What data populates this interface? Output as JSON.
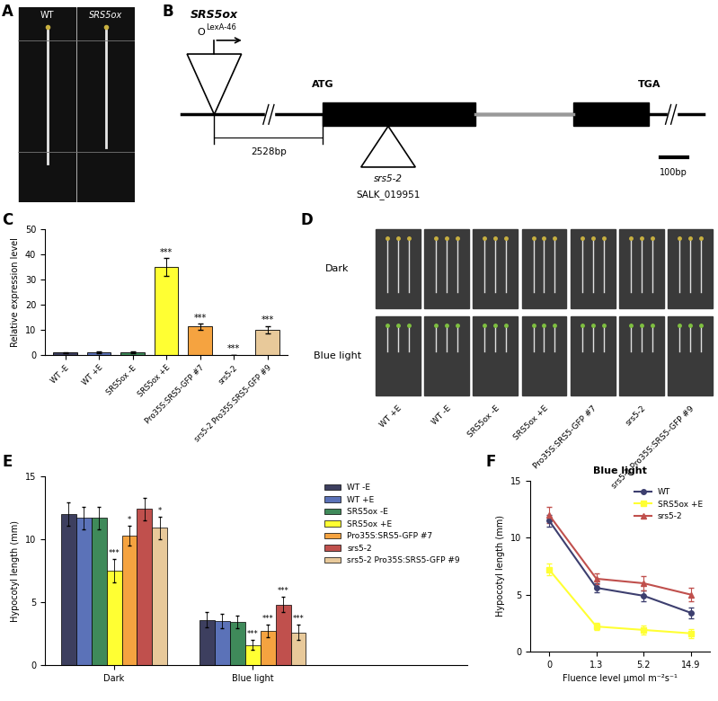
{
  "chart_data": [
    {
      "type": "bar",
      "panel": "C",
      "categories": [
        "WT -E",
        "WT +E",
        "SRS5ox -E",
        "SRS5ox +E",
        "Pro35S:SRS5-GFP #7",
        "srs5-2",
        "srs5-2 Pro35S:SRS5-GFP #9"
      ],
      "values": [
        1.0,
        1.1,
        1.1,
        35.0,
        11.3,
        0.1,
        10.0
      ],
      "errors": [
        0.2,
        0.3,
        0.3,
        3.5,
        1.2,
        0.05,
        1.5
      ],
      "significance": [
        null,
        null,
        null,
        "***",
        "***",
        "***",
        "***"
      ],
      "colors": [
        "#3d3f5f",
        "#5b72b8",
        "#3f8a5a",
        "#ffff33",
        "#f5a340",
        "#c0504d",
        "#e8c99a"
      ],
      "y_label": "Relative expression level",
      "ylim": [
        0,
        50
      ],
      "yticks": [
        0,
        10,
        20,
        30,
        40,
        50
      ]
    },
    {
      "type": "bar",
      "panel": "E",
      "categories": [
        "Dark",
        "Blue light"
      ],
      "y_label": "Hypocotyl length (mm)",
      "ylim": [
        0,
        15
      ],
      "yticks": [
        0,
        5,
        10,
        15
      ],
      "legend": "upper right",
      "series": [
        {
          "name": "WT -E",
          "color": "#3d3f5f",
          "values": [
            12.0,
            3.6
          ],
          "errors": [
            0.9,
            0.6
          ],
          "significance": [
            null,
            null
          ]
        },
        {
          "name": "WT +E",
          "color": "#5b72b8",
          "values": [
            11.7,
            3.5
          ],
          "errors": [
            0.9,
            0.6
          ],
          "significance": [
            null,
            null
          ]
        },
        {
          "name": "SRS5ox -E",
          "color": "#3f8a5a",
          "values": [
            11.7,
            3.4
          ],
          "errors": [
            0.9,
            0.5
          ],
          "significance": [
            null,
            null
          ]
        },
        {
          "name": "SRS5ox +E",
          "color": "#ffff33",
          "values": [
            7.5,
            1.6
          ],
          "errors": [
            0.9,
            0.4
          ],
          "significance": [
            "***",
            "***"
          ]
        },
        {
          "name": "Pro35S:SRS5-GFP #7",
          "color": "#f5a340",
          "values": [
            10.3,
            2.7
          ],
          "errors": [
            0.8,
            0.5
          ],
          "significance": [
            "*",
            "***"
          ]
        },
        {
          "name": "srs5-2",
          "color": "#c0504d",
          "values": [
            12.4,
            4.8
          ],
          "errors": [
            0.9,
            0.6
          ],
          "significance": [
            null,
            "***"
          ]
        },
        {
          "name": "srs5-2 Pro35S:SRS5-GFP #9",
          "color": "#e8c99a",
          "values": [
            10.9,
            2.6
          ],
          "errors": [
            0.9,
            0.6
          ],
          "significance": [
            "*",
            "***"
          ]
        }
      ]
    },
    {
      "type": "line",
      "panel": "F",
      "title": "Blue light",
      "categories": [
        "0",
        "1.3",
        "5.2",
        "14.9"
      ],
      "x_label": "Fluence level μmol m⁻²s⁻¹",
      "y_label": "Hypocotyl length (mm)",
      "ylim": [
        0,
        15
      ],
      "yticks": [
        0,
        5,
        10,
        15
      ],
      "legend": "upper right",
      "series": [
        {
          "name": "WT",
          "color": "#3d3f6f",
          "marker": "circle",
          "values": [
            11.5,
            5.6,
            4.9,
            3.4
          ],
          "errors": [
            0.5,
            0.4,
            0.5,
            0.5
          ]
        },
        {
          "name": "SRS5ox +E",
          "color": "#ffff33",
          "marker": "square",
          "values": [
            7.2,
            2.2,
            1.9,
            1.6
          ],
          "errors": [
            0.5,
            0.3,
            0.4,
            0.4
          ]
        },
        {
          "name": "srs5-2",
          "color": "#c0504d",
          "marker": "triangle",
          "values": [
            12.0,
            6.4,
            6.0,
            5.0
          ],
          "errors": [
            0.7,
            0.5,
            0.6,
            0.6
          ]
        }
      ]
    }
  ],
  "panel_A": {
    "panel": "A",
    "labels": [
      "WT",
      "SRS5ox"
    ]
  },
  "panel_B": {
    "panel": "B",
    "top_label": "SRS5ox",
    "promoter": {
      "text": "O",
      "superscript": "LexA-46"
    },
    "start": "ATG",
    "stop": "TGA",
    "distance": "2528bp",
    "insertion": "srs5-2",
    "insertion_line": "SALK_019951",
    "scale_bar": "100bp"
  },
  "panel_D": {
    "panel": "D",
    "rows": [
      "Dark",
      "Blue light"
    ],
    "columns": [
      "WT +E",
      "WT -E",
      "SRS5ox -E",
      "SRS5ox +E",
      "Pro35S:SRS5-GFP #7",
      "srs5-2",
      "srs5-2 Pro35S:SRS5-GFP #9"
    ]
  }
}
